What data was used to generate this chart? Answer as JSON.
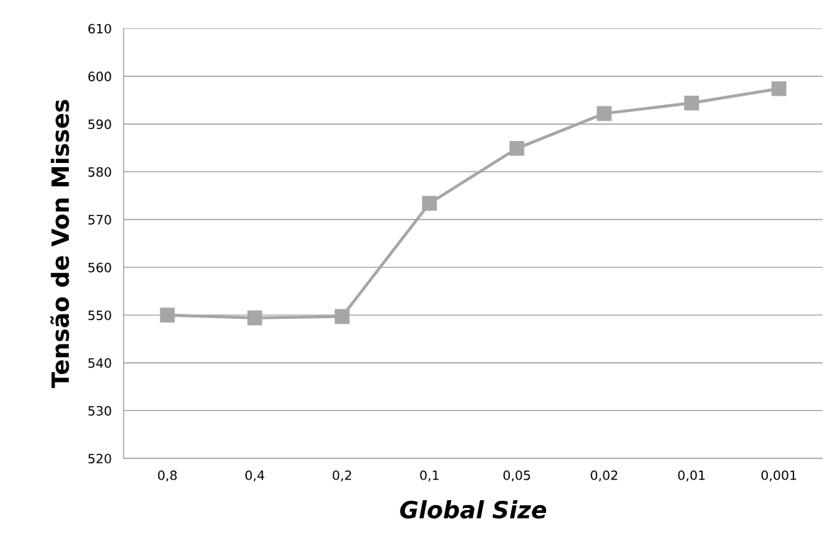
{
  "chart_data": {
    "type": "line",
    "xlabel": "Global Size",
    "ylabel": "Tensão de Von Misses",
    "categories": [
      "0,8",
      "0,4",
      "0,2",
      "0,1",
      "0,05",
      "0,02",
      "0,01",
      "0,001"
    ],
    "values": [
      550.0,
      549.4,
      549.7,
      573.4,
      584.9,
      592.2,
      594.4,
      597.4
    ],
    "color": "#a6a6a6",
    "marker": "square",
    "line_style": "solid",
    "ylim": [
      520,
      610
    ],
    "yticks": [
      520,
      530,
      540,
      550,
      560,
      570,
      580,
      590,
      600,
      610
    ],
    "grid": "y"
  }
}
